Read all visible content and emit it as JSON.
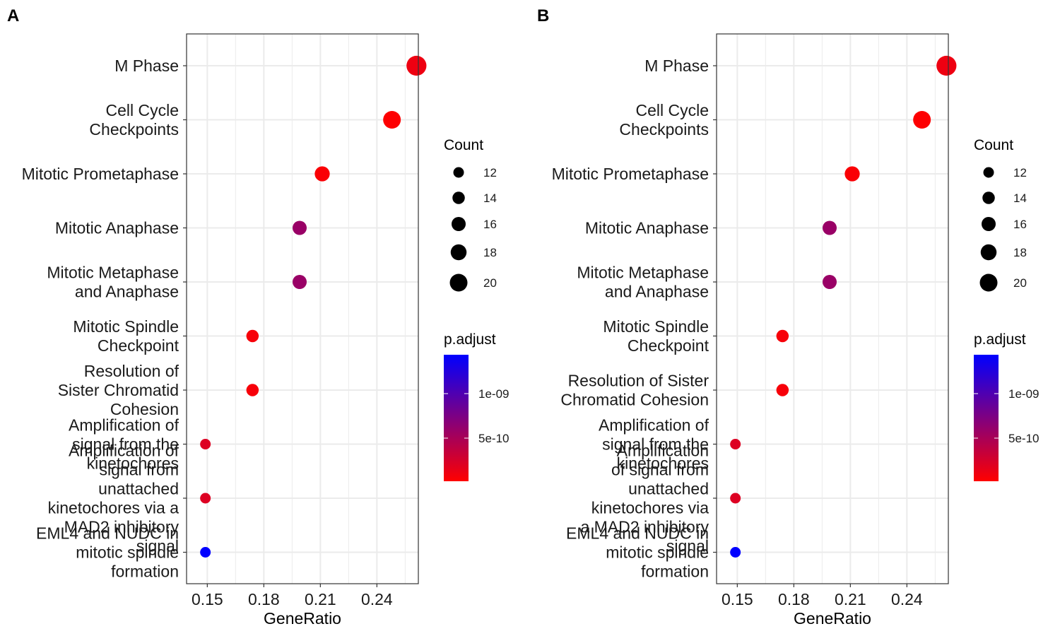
{
  "panel_labels": [
    "A",
    "B"
  ],
  "legend": {
    "count_title": "Count",
    "count_values": [
      "12",
      "14",
      "16",
      "18",
      "20"
    ],
    "padj_title": "p.adjust",
    "padj_ticks": [
      "1e-09",
      "5e-10"
    ],
    "colors": {
      "low": "#FF0000",
      "high": "#0000FF"
    }
  },
  "chart_data": [
    {
      "type": "scatter",
      "panel": "A",
      "xlabel": "GeneRatio",
      "ylabel": "",
      "x_ticks": [
        "0.15",
        "0.18",
        "0.21",
        "0.24"
      ],
      "xlim": [
        0.139,
        0.262
      ],
      "size_range": [
        11,
        21
      ],
      "padj_range": [
        0,
        1.5e-09
      ],
      "grid": true,
      "points": [
        {
          "label": "M Phase",
          "gene_ratio": 0.261,
          "count": 21,
          "p_adjust": 1e-10
        },
        {
          "label": "Cell Cycle\nCheckpoints",
          "gene_ratio": 0.248,
          "count": 20,
          "p_adjust": 1e-11
        },
        {
          "label": "Mitotic Prometaphase",
          "gene_ratio": 0.211,
          "count": 17,
          "p_adjust": 3e-11
        },
        {
          "label": "Mitotic Anaphase",
          "gene_ratio": 0.199,
          "count": 16,
          "p_adjust": 6e-10
        },
        {
          "label": "Mitotic Metaphase\nand Anaphase",
          "gene_ratio": 0.199,
          "count": 16,
          "p_adjust": 6e-10
        },
        {
          "label": "Mitotic Spindle\nCheckpoint",
          "gene_ratio": 0.174,
          "count": 14,
          "p_adjust": 5e-11
        },
        {
          "label": "Resolution of\nSister Chromatid\nCohesion",
          "gene_ratio": 0.174,
          "count": 14,
          "p_adjust": 5e-11
        },
        {
          "label": "Amplification of\nsignal from the\nkinetochores",
          "gene_ratio": 0.149,
          "count": 12,
          "p_adjust": 2e-10
        },
        {
          "label": "Amplification  of\nsignal from\nunattached\nkinetochores via a\nMAD2  inhibitory\nsignal",
          "gene_ratio": 0.149,
          "count": 12,
          "p_adjust": 2e-10
        },
        {
          "label": "EML4 and NUDC in\nmitotic spindle\nformation",
          "gene_ratio": 0.149,
          "count": 12,
          "p_adjust": 1.5e-09
        }
      ]
    },
    {
      "type": "scatter",
      "panel": "B",
      "xlabel": "GeneRatio",
      "ylabel": "",
      "x_ticks": [
        "0.15",
        "0.18",
        "0.21",
        "0.24"
      ],
      "xlim": [
        0.139,
        0.262
      ],
      "size_range": [
        11,
        21
      ],
      "padj_range": [
        0,
        1.5e-09
      ],
      "grid": true,
      "points": [
        {
          "label": "M Phase",
          "gene_ratio": 0.261,
          "count": 21,
          "p_adjust": 1e-10
        },
        {
          "label": "Cell Cycle\nCheckpoints",
          "gene_ratio": 0.248,
          "count": 20,
          "p_adjust": 1e-11
        },
        {
          "label": "Mitotic Prometaphase",
          "gene_ratio": 0.211,
          "count": 17,
          "p_adjust": 3e-11
        },
        {
          "label": "Mitotic Anaphase",
          "gene_ratio": 0.199,
          "count": 16,
          "p_adjust": 6e-10
        },
        {
          "label": "Mitotic Metaphase\nand Anaphase",
          "gene_ratio": 0.199,
          "count": 16,
          "p_adjust": 6e-10
        },
        {
          "label": "Mitotic Spindle\nCheckpoint",
          "gene_ratio": 0.174,
          "count": 14,
          "p_adjust": 5e-11
        },
        {
          "label": "Resolution of Sister\nChromatid Cohesion",
          "gene_ratio": 0.174,
          "count": 14,
          "p_adjust": 5e-11
        },
        {
          "label": "Amplification of\nsignal from the\nkinetochores",
          "gene_ratio": 0.149,
          "count": 12,
          "p_adjust": 2e-10
        },
        {
          "label": "Amplification\nof signal from\nunattached\nkinetochores via\na MAD2 inhibitory\nsignal",
          "gene_ratio": 0.149,
          "count": 12,
          "p_adjust": 2e-10
        },
        {
          "label": "EML4 and NUDC in\nmitotic spindle\nformation",
          "gene_ratio": 0.149,
          "count": 12,
          "p_adjust": 1.5e-09
        }
      ]
    }
  ]
}
